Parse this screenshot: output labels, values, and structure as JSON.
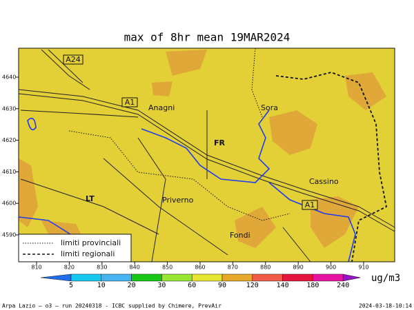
{
  "title": "max of 8hr mean 19MAR2024",
  "x_ticks": [
    810,
    820,
    830,
    840,
    850,
    860,
    870,
    880,
    890,
    900,
    910
  ],
  "y_ticks": [
    4640,
    4630,
    4620,
    4610,
    4600,
    4590
  ],
  "places": {
    "a24": "A24",
    "a1_north": "A1",
    "a1_south": "A1",
    "anagni": "Anagni",
    "sora": "Sora",
    "fr": "FR",
    "cassino": "Cassino",
    "priverno": "Priverno",
    "lt": "LT",
    "fondi": "Fondi"
  },
  "legend": {
    "provincial": "limiti provinciali",
    "regional": "limiti regionali"
  },
  "colorbar": {
    "labels": [
      5,
      10,
      20,
      30,
      60,
      90,
      120,
      140,
      180,
      240
    ],
    "colors": [
      "#1e6ef0",
      "#14c8f0",
      "#46b4f0",
      "#14c814",
      "#96e632",
      "#e6e632",
      "#e6a828",
      "#f05a46",
      "#e6143c",
      "#e614a0",
      "#9614c8"
    ],
    "unit": "ug/m3"
  },
  "footer": {
    "left": "Arpa Lazio — o3 — run 20240318 - ICBC supplied by Chimere, PrevAir",
    "right": "2024-03-18-10:14"
  }
}
